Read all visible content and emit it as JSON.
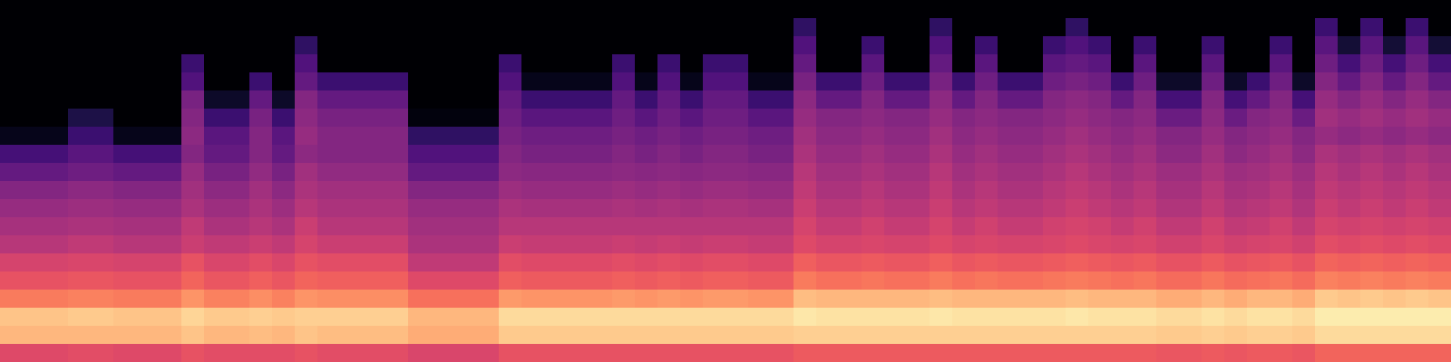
{
  "chart_data": {
    "type": "heatmap",
    "color": "magma",
    "tick_labels": false,
    "zlim": [
      -80,
      0
    ],
    "cells": [
      [
        -80,
        -80,
        -80,
        -80,
        -80,
        -80,
        -80,
        -76,
        -62,
        -56,
        -50,
        -46,
        -43,
        -40,
        -34,
        -30,
        -22,
        -10,
        -12,
        -32
      ],
      [
        -80,
        -80,
        -80,
        -80,
        -80,
        -80,
        -80,
        -76,
        -62,
        -56,
        -50,
        -46,
        -43,
        -40,
        -34,
        -30,
        -22,
        -10,
        -12,
        -32
      ],
      [
        -80,
        -80,
        -80,
        -80,
        -80,
        -80,
        -80,
        -76,
        -62,
        -56,
        -50,
        -46,
        -43,
        -40,
        -34,
        -30,
        -22,
        -10,
        -12,
        -32
      ],
      [
        -80,
        -80,
        -80,
        -80,
        -80,
        -80,
        -70,
        -64,
        -58,
        -54,
        -48,
        -45,
        -42,
        -38,
        -33,
        -29,
        -21,
        -9,
        -12,
        -31
      ],
      [
        -80,
        -80,
        -80,
        -80,
        -80,
        -80,
        -70,
        -64,
        -58,
        -54,
        -48,
        -45,
        -42,
        -38,
        -33,
        -29,
        -21,
        -9,
        -12,
        -31
      ],
      [
        -80,
        -80,
        -80,
        -80,
        -80,
        -80,
        -80,
        -76,
        -62,
        -56,
        -50,
        -46,
        -43,
        -40,
        -34,
        -30,
        -22,
        -10,
        -12,
        -32
      ],
      [
        -80,
        -80,
        -80,
        -80,
        -80,
        -80,
        -80,
        -76,
        -62,
        -56,
        -50,
        -46,
        -43,
        -40,
        -34,
        -30,
        -22,
        -10,
        -12,
        -32
      ],
      [
        -80,
        -80,
        -80,
        -80,
        -80,
        -80,
        -80,
        -76,
        -62,
        -56,
        -50,
        -46,
        -43,
        -40,
        -34,
        -30,
        -22,
        -10,
        -12,
        -32
      ],
      [
        -80,
        -80,
        -80,
        -64,
        -60,
        -52,
        -50,
        -48,
        -50,
        -46,
        -44,
        -42,
        -38,
        -36,
        -30,
        -26,
        -18,
        -7,
        -10,
        -30
      ],
      [
        -80,
        -80,
        -80,
        -80,
        -80,
        -74,
        -64,
        -58,
        -56,
        -52,
        -48,
        -45,
        -42,
        -38,
        -33,
        -29,
        -21,
        -9,
        -12,
        -31
      ],
      [
        -80,
        -80,
        -80,
        -80,
        -80,
        -74,
        -64,
        -58,
        -56,
        -52,
        -48,
        -45,
        -42,
        -38,
        -33,
        -29,
        -21,
        -9,
        -12,
        -31
      ],
      [
        -80,
        -80,
        -80,
        -80,
        -64,
        -56,
        -52,
        -50,
        -50,
        -47,
        -44,
        -42,
        -40,
        -36,
        -31,
        -27,
        -19,
        -8,
        -11,
        -31
      ],
      [
        -80,
        -80,
        -80,
        -80,
        -80,
        -74,
        -64,
        -58,
        -56,
        -52,
        -48,
        -45,
        -42,
        -38,
        -33,
        -29,
        -21,
        -9,
        -12,
        -31
      ],
      [
        -80,
        -80,
        -66,
        -60,
        -56,
        -50,
        -48,
        -46,
        -48,
        -44,
        -42,
        -40,
        -36,
        -34,
        -30,
        -26,
        -18,
        -8,
        -10,
        -30
      ],
      [
        -80,
        -80,
        -80,
        -80,
        -64,
        -56,
        -52,
        -50,
        -50,
        -47,
        -44,
        -42,
        -40,
        -36,
        -31,
        -27,
        -19,
        -8,
        -11,
        -31
      ],
      [
        -80,
        -80,
        -80,
        -80,
        -64,
        -56,
        -52,
        -50,
        -50,
        -47,
        -44,
        -42,
        -40,
        -36,
        -31,
        -27,
        -19,
        -8,
        -11,
        -31
      ],
      [
        -80,
        -80,
        -80,
        -80,
        -64,
        -56,
        -52,
        -50,
        -50,
        -47,
        -44,
        -42,
        -40,
        -36,
        -31,
        -27,
        -19,
        -8,
        -11,
        -31
      ],
      [
        -80,
        -80,
        -80,
        -80,
        -64,
        -56,
        -52,
        -50,
        -50,
        -47,
        -44,
        -42,
        -40,
        -36,
        -31,
        -27,
        -19,
        -8,
        -11,
        -31
      ],
      [
        -80,
        -80,
        -80,
        -80,
        -80,
        -80,
        -78,
        -66,
        -60,
        -56,
        -50,
        -46,
        -44,
        -42,
        -38,
        -32,
        -24,
        -12,
        -14,
        -33
      ],
      [
        -80,
        -80,
        -80,
        -80,
        -80,
        -80,
        -78,
        -66,
        -60,
        -56,
        -50,
        -46,
        -44,
        -42,
        -38,
        -32,
        -24,
        -12,
        -14,
        -33
      ],
      [
        -80,
        -80,
        -80,
        -80,
        -80,
        -80,
        -78,
        -66,
        -60,
        -56,
        -50,
        -46,
        -44,
        -42,
        -38,
        -32,
        -24,
        -12,
        -14,
        -33
      ],
      [
        -80,
        -80,
        -80,
        -80,
        -80,
        -80,
        -78,
        -66,
        -60,
        -56,
        -50,
        -46,
        -44,
        -42,
        -38,
        -32,
        -24,
        -12,
        -14,
        -33
      ],
      [
        -80,
        -80,
        -80,
        -64,
        -60,
        -56,
        -54,
        -52,
        -50,
        -48,
        -45,
        -42,
        -40,
        -36,
        -31,
        -27,
        -17,
        -6,
        -9,
        -30
      ],
      [
        -80,
        -80,
        -80,
        -80,
        -76,
        -64,
        -58,
        -54,
        -52,
        -49,
        -46,
        -43,
        -40,
        -37,
        -32,
        -28,
        -18,
        -6,
        -9,
        -30
      ],
      [
        -80,
        -80,
        -80,
        -80,
        -76,
        -64,
        -58,
        -54,
        -52,
        -49,
        -46,
        -43,
        -40,
        -37,
        -32,
        -28,
        -18,
        -6,
        -9,
        -30
      ],
      [
        -80,
        -80,
        -80,
        -80,
        -76,
        -64,
        -58,
        -54,
        -52,
        -49,
        -46,
        -43,
        -40,
        -37,
        -32,
        -28,
        -18,
        -6,
        -9,
        -30
      ],
      [
        -80,
        -80,
        -80,
        -80,
        -76,
        -64,
        -58,
        -54,
        -52,
        -49,
        -46,
        -43,
        -40,
        -37,
        -32,
        -28,
        -18,
        -6,
        -9,
        -30
      ],
      [
        -80,
        -80,
        -80,
        -64,
        -60,
        -56,
        -54,
        -52,
        -50,
        -48,
        -45,
        -42,
        -40,
        -36,
        -31,
        -27,
        -17,
        -6,
        -9,
        -30
      ],
      [
        -80,
        -80,
        -80,
        -80,
        -76,
        -64,
        -58,
        -54,
        -52,
        -49,
        -46,
        -43,
        -40,
        -37,
        -32,
        -28,
        -18,
        -6,
        -9,
        -30
      ],
      [
        -80,
        -80,
        -80,
        -64,
        -60,
        -56,
        -54,
        -52,
        -50,
        -48,
        -45,
        -42,
        -40,
        -36,
        -31,
        -27,
        -17,
        -6,
        -9,
        -30
      ],
      [
        -80,
        -80,
        -80,
        -80,
        -76,
        -64,
        -58,
        -54,
        -52,
        -49,
        -46,
        -43,
        -40,
        -37,
        -32,
        -28,
        -18,
        -6,
        -9,
        -30
      ],
      [
        -80,
        -80,
        -80,
        -64,
        -60,
        -56,
        -54,
        -52,
        -50,
        -48,
        -45,
        -42,
        -40,
        -36,
        -31,
        -27,
        -17,
        -6,
        -9,
        -30
      ],
      [
        -80,
        -80,
        -80,
        -64,
        -60,
        -56,
        -54,
        -52,
        -50,
        -48,
        -45,
        -42,
        -40,
        -36,
        -31,
        -27,
        -17,
        -6,
        -9,
        -30
      ],
      [
        -80,
        -80,
        -80,
        -80,
        -76,
        -64,
        -58,
        -54,
        -52,
        -49,
        -46,
        -43,
        -40,
        -37,
        -32,
        -28,
        -18,
        -6,
        -9,
        -30
      ],
      [
        -80,
        -80,
        -80,
        -80,
        -76,
        -64,
        -58,
        -54,
        -52,
        -49,
        -46,
        -43,
        -40,
        -37,
        -32,
        -28,
        -18,
        -6,
        -9,
        -30
      ],
      [
        -80,
        -66,
        -60,
        -56,
        -52,
        -48,
        -46,
        -44,
        -42,
        -40,
        -38,
        -36,
        -34,
        -32,
        -27,
        -22,
        -11,
        -4,
        -8,
        -28
      ],
      [
        -80,
        -80,
        -80,
        -80,
        -64,
        -56,
        -50,
        -48,
        -46,
        -44,
        -42,
        -40,
        -37,
        -34,
        -29,
        -24,
        -12,
        -5,
        -8,
        -28
      ],
      [
        -80,
        -80,
        -80,
        -80,
        -64,
        -56,
        -50,
        -48,
        -46,
        -44,
        -42,
        -40,
        -37,
        -34,
        -29,
        -24,
        -12,
        -5,
        -8,
        -28
      ],
      [
        -80,
        -80,
        -64,
        -58,
        -54,
        -50,
        -48,
        -46,
        -44,
        -42,
        -40,
        -38,
        -35,
        -33,
        -28,
        -23,
        -12,
        -5,
        -8,
        -28
      ],
      [
        -80,
        -80,
        -80,
        -80,
        -64,
        -56,
        -50,
        -48,
        -46,
        -44,
        -42,
        -40,
        -37,
        -34,
        -29,
        -24,
        -12,
        -5,
        -8,
        -28
      ],
      [
        -80,
        -80,
        -80,
        -80,
        -64,
        -56,
        -50,
        -48,
        -46,
        -44,
        -42,
        -40,
        -37,
        -34,
        -29,
        -24,
        -12,
        -5,
        -8,
        -28
      ],
      [
        -80,
        -66,
        -60,
        -56,
        -52,
        -48,
        -46,
        -44,
        -42,
        -40,
        -38,
        -36,
        -34,
        -32,
        -27,
        -22,
        -11,
        -4,
        -8,
        -28
      ],
      [
        -80,
        -80,
        -80,
        -80,
        -64,
        -56,
        -50,
        -48,
        -46,
        -44,
        -42,
        -40,
        -37,
        -34,
        -29,
        -24,
        -12,
        -5,
        -8,
        -28
      ],
      [
        -80,
        -80,
        -64,
        -58,
        -54,
        -50,
        -48,
        -46,
        -44,
        -42,
        -40,
        -38,
        -35,
        -33,
        -28,
        -23,
        -12,
        -5,
        -8,
        -28
      ],
      [
        -80,
        -80,
        -80,
        -80,
        -64,
        -56,
        -50,
        -48,
        -46,
        -44,
        -42,
        -40,
        -37,
        -34,
        -29,
        -24,
        -12,
        -5,
        -8,
        -28
      ],
      [
        -80,
        -80,
        -80,
        -80,
        -64,
        -56,
        -50,
        -48,
        -46,
        -44,
        -42,
        -40,
        -37,
        -34,
        -29,
        -24,
        -12,
        -5,
        -8,
        -28
      ],
      [
        -80,
        -80,
        -64,
        -58,
        -54,
        -50,
        -48,
        -46,
        -44,
        -42,
        -40,
        -38,
        -35,
        -33,
        -28,
        -23,
        -12,
        -5,
        -8,
        -28
      ],
      [
        -80,
        -66,
        -60,
        -56,
        -52,
        -48,
        -46,
        -44,
        -42,
        -40,
        -38,
        -36,
        -34,
        -32,
        -27,
        -22,
        -11,
        -4,
        -8,
        -28
      ],
      [
        -80,
        -80,
        -64,
        -58,
        -54,
        -50,
        -48,
        -46,
        -44,
        -42,
        -40,
        -38,
        -35,
        -33,
        -28,
        -23,
        -12,
        -5,
        -8,
        -28
      ],
      [
        -80,
        -80,
        -80,
        -80,
        -64,
        -56,
        -50,
        -48,
        -46,
        -44,
        -42,
        -40,
        -37,
        -34,
        -29,
        -24,
        -12,
        -5,
        -8,
        -28
      ],
      [
        -80,
        -80,
        -64,
        -58,
        -54,
        -50,
        -48,
        -46,
        -44,
        -42,
        -40,
        -38,
        -35,
        -33,
        -28,
        -23,
        -12,
        -5,
        -8,
        -28
      ],
      [
        -80,
        -80,
        -80,
        -80,
        -74,
        -62,
        -55,
        -50,
        -48,
        -45,
        -43,
        -41,
        -38,
        -35,
        -30,
        -25,
        -14,
        -6,
        -9,
        -29
      ],
      [
        -80,
        -80,
        -80,
        -80,
        -74,
        -62,
        -55,
        -50,
        -48,
        -45,
        -43,
        -41,
        -38,
        -35,
        -30,
        -25,
        -14,
        -6,
        -9,
        -29
      ],
      [
        -80,
        -80,
        -64,
        -58,
        -54,
        -50,
        -48,
        -46,
        -44,
        -42,
        -40,
        -38,
        -35,
        -33,
        -28,
        -23,
        -12,
        -5,
        -8,
        -28
      ],
      [
        -80,
        -80,
        -80,
        -80,
        -74,
        -62,
        -55,
        -50,
        -48,
        -45,
        -43,
        -41,
        -38,
        -35,
        -30,
        -25,
        -14,
        -6,
        -9,
        -29
      ],
      [
        -80,
        -80,
        -80,
        -80,
        -64,
        -56,
        -50,
        -48,
        -46,
        -44,
        -42,
        -40,
        -37,
        -34,
        -29,
        -24,
        -12,
        -5,
        -8,
        -28
      ],
      [
        -80,
        -80,
        -64,
        -58,
        -54,
        -50,
        -48,
        -46,
        -44,
        -42,
        -40,
        -38,
        -35,
        -33,
        -28,
        -23,
        -12,
        -5,
        -8,
        -28
      ],
      [
        -80,
        -80,
        -80,
        -80,
        -74,
        -62,
        -55,
        -50,
        -48,
        -45,
        -43,
        -41,
        -38,
        -35,
        -30,
        -25,
        -14,
        -6,
        -9,
        -29
      ],
      [
        -80,
        -64,
        -58,
        -54,
        -50,
        -46,
        -44,
        -46,
        -42,
        -40,
        -38,
        -36,
        -34,
        -31,
        -26,
        -21,
        -9,
        -3,
        -6,
        -26
      ],
      [
        -80,
        -80,
        -72,
        -62,
        -56,
        -50,
        -46,
        -48,
        -44,
        -42,
        -40,
        -38,
        -35,
        -32,
        -27,
        -22,
        -10,
        -3,
        -6,
        -26
      ],
      [
        -80,
        -64,
        -58,
        -54,
        -50,
        -46,
        -44,
        -46,
        -42,
        -40,
        -38,
        -36,
        -34,
        -31,
        -26,
        -21,
        -9,
        -3,
        -6,
        -26
      ],
      [
        -80,
        -80,
        -72,
        -62,
        -56,
        -50,
        -46,
        -48,
        -44,
        -42,
        -40,
        -38,
        -35,
        -32,
        -27,
        -22,
        -10,
        -3,
        -6,
        -26
      ],
      [
        -80,
        -64,
        -58,
        -54,
        -50,
        -46,
        -44,
        -46,
        -42,
        -40,
        -38,
        -36,
        -34,
        -31,
        -26,
        -21,
        -9,
        -3,
        -6,
        -26
      ],
      [
        -80,
        -80,
        -72,
        -62,
        -56,
        -50,
        -46,
        -48,
        -44,
        -42,
        -40,
        -38,
        -35,
        -32,
        -27,
        -22,
        -10,
        -3,
        -6,
        -26
      ]
    ]
  }
}
